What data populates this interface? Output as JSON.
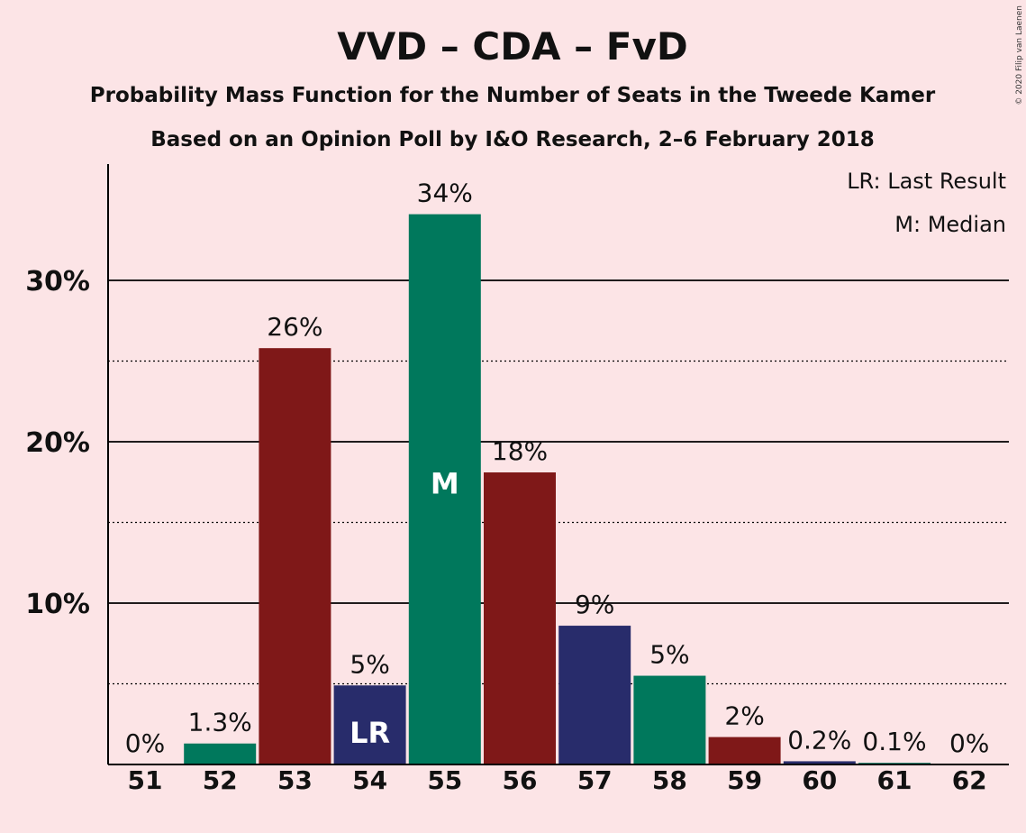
{
  "chart_data": {
    "type": "bar",
    "title": "VVD – CDA – FvD",
    "subtitle_line1": "Probability Mass Function for the Number of Seats in the Tweede Kamer",
    "subtitle_line2": "Based on an Opinion Poll by I&O Research, 2–6 February 2018",
    "categories": [
      "51",
      "52",
      "53",
      "54",
      "55",
      "56",
      "57",
      "58",
      "59",
      "60",
      "61",
      "62"
    ],
    "values": [
      0,
      1.3,
      25.8,
      4.9,
      34.1,
      18.1,
      8.6,
      5.5,
      1.7,
      0.2,
      0.1,
      0
    ],
    "data_labels": [
      "0%",
      "1.3%",
      "26%",
      "5%",
      "34%",
      "18%",
      "9%",
      "5%",
      "2%",
      "0.2%",
      "0.1%",
      "0%"
    ],
    "bar_colors": [
      "#7F1818",
      "#00785C",
      "#7F1818",
      "#282C6B",
      "#00785C",
      "#7F1818",
      "#282C6B",
      "#00785C",
      "#7F1818",
      "#282C6B",
      "#00785C",
      "#7F1818"
    ],
    "bar_annotations": {
      "54": "LR",
      "55": "M"
    },
    "yticks": [
      10,
      20,
      30
    ],
    "ytick_labels": [
      "10%",
      "20%",
      "30%"
    ],
    "minor_gridlines": [
      5,
      15,
      25
    ],
    "ylim": [
      0,
      37
    ],
    "legend": [
      "LR: Last Result",
      "M: Median"
    ],
    "legend_position": "top-right",
    "copyright": "© 2020 Filip van Laenen"
  }
}
